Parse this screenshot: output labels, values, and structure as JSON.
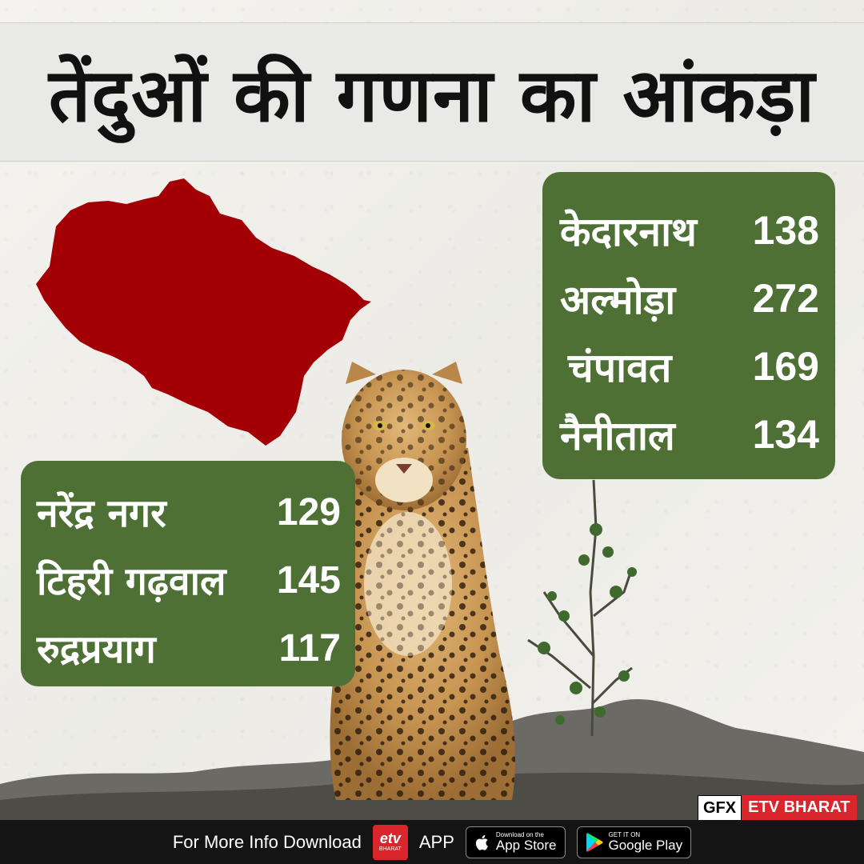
{
  "title": "तेंदुओं की गणना का आंकड़ा",
  "colors": {
    "map_fill": "#a30006",
    "panel_bg": "#4f7035",
    "brand_red": "#d8262c"
  },
  "right_panel": {
    "rows": [
      {
        "name": "केदारनाथ",
        "value": "138"
      },
      {
        "name": "अल्मोड़ा",
        "value": "272"
      },
      {
        "name": "चंपावत",
        "value": "169"
      },
      {
        "name": "नैनीताल",
        "value": "134"
      }
    ]
  },
  "left_panel": {
    "rows": [
      {
        "name": "नरेंद्र नगर",
        "value": "129"
      },
      {
        "name": "टिहरी गढ़वाल",
        "value": "145"
      },
      {
        "name": "रुद्रप्रयाग",
        "value": "117"
      }
    ]
  },
  "watermark": {
    "gfx": "GFX",
    "brand": "ETV BHARAT"
  },
  "footer": {
    "info_text": "For More Info Download",
    "etv_logo_main": "etv",
    "etv_logo_sub": "BHARAT",
    "app_label": "APP",
    "app_store_small": "Download on the",
    "app_store_big": "App Store",
    "google_play_small": "GET IT ON",
    "google_play_big": "Google Play"
  },
  "icons": [
    "uttarakhand-map-icon",
    "leopard-illustration",
    "apple-icon",
    "play-store-icon"
  ]
}
